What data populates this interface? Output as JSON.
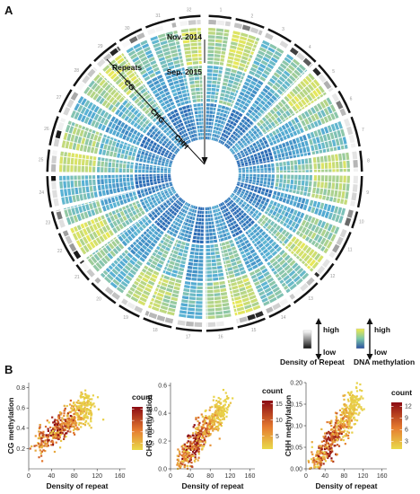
{
  "panel_a": {
    "label": "A",
    "time_start": "Nov. 2014",
    "time_end": "Sep. 2015",
    "track_labels": [
      "Repeats",
      "CG",
      "CHG",
      "CHH"
    ],
    "chromosome_labels": [
      "1",
      "2",
      "3",
      "4",
      "5",
      "6",
      "7",
      "8",
      "9",
      "10",
      "11",
      "12",
      "13",
      "14",
      "15",
      "16",
      "17",
      "18",
      "19",
      "20",
      "21",
      "22",
      "23",
      "24",
      "25",
      "26",
      "27",
      "28",
      "29",
      "30",
      "31",
      "32"
    ],
    "legend_repeat": {
      "high": "high",
      "low": "low",
      "title": "Density of Repeat"
    },
    "legend_methylation": {
      "high": "high",
      "low": "low",
      "title": "DNA methylation"
    }
  },
  "panel_b": {
    "label": "B"
  },
  "colors": {
    "methyl_low": "#2b6ab5",
    "methyl_mid": "#5ab4d6",
    "methyl_high": "#e8e85a",
    "count_low": "#e8d64a",
    "count_high": "#8b0a12"
  },
  "chart_data": [
    {
      "type": "heatmap",
      "title": "",
      "xlabel": "Density of repeat",
      "ylabel": "CG methylation",
      "xlim": [
        0,
        170
      ],
      "ylim": [
        0,
        0.85
      ],
      "x_ticks": [
        "0",
        "40",
        "80",
        "120",
        "160"
      ],
      "y_ticks": [
        "0.2",
        "0.4",
        "0.6",
        "0.8"
      ],
      "x_tick_values": [
        0,
        40,
        80,
        120,
        160
      ],
      "y_tick_values": [
        0.2,
        0.4,
        0.6,
        0.8
      ],
      "legend": {
        "title": "count",
        "ticks": [
          "10.0",
          "7.5",
          "5.0",
          "2.5"
        ],
        "tick_values": [
          10,
          7.5,
          5,
          2.5
        ],
        "range": [
          1,
          10.5
        ]
      },
      "trend": {
        "x": [
          15,
          110
        ],
        "y": [
          0.22,
          0.66
        ],
        "spread": 0.13
      },
      "grid": false
    },
    {
      "type": "heatmap",
      "title": "",
      "xlabel": "Density of repeat",
      "ylabel": "CHG methylation",
      "xlim": [
        0,
        170
      ],
      "ylim": [
        0,
        0.62
      ],
      "x_ticks": [
        "0",
        "40",
        "80",
        "120",
        "160"
      ],
      "y_ticks": [
        "0.0",
        "0.2",
        "0.4",
        "0.6"
      ],
      "x_tick_values": [
        0,
        40,
        80,
        120,
        160
      ],
      "y_tick_values": [
        0,
        0.2,
        0.4,
        0.6
      ],
      "legend": {
        "title": "count",
        "ticks": [
          "15",
          "10",
          "5"
        ],
        "tick_values": [
          15,
          10,
          5
        ],
        "range": [
          1,
          16
        ]
      },
      "trend": {
        "x": [
          15,
          110
        ],
        "y": [
          0.02,
          0.46
        ],
        "spread": 0.09
      },
      "grid": false
    },
    {
      "type": "heatmap",
      "title": "",
      "xlabel": "Density of repeat",
      "ylabel": "CHH methylation",
      "xlim": [
        0,
        170
      ],
      "ylim": [
        0,
        0.2
      ],
      "x_ticks": [
        "0",
        "40",
        "80",
        "120",
        "160"
      ],
      "y_ticks": [
        "0.00",
        "0.05",
        "0.10",
        "0.15",
        "0.20"
      ],
      "x_tick_values": [
        0,
        40,
        80,
        120,
        160
      ],
      "y_tick_values": [
        0,
        0.05,
        0.1,
        0.15,
        0.2
      ],
      "legend": {
        "title": "count",
        "ticks": [
          "12",
          "9",
          "6",
          "3"
        ],
        "tick_values": [
          12,
          9,
          6,
          3
        ],
        "range": [
          1,
          13
        ]
      },
      "trend": {
        "x": [
          15,
          110
        ],
        "y": [
          0.005,
          0.16
        ],
        "spread": 0.035
      },
      "grid": false
    }
  ]
}
